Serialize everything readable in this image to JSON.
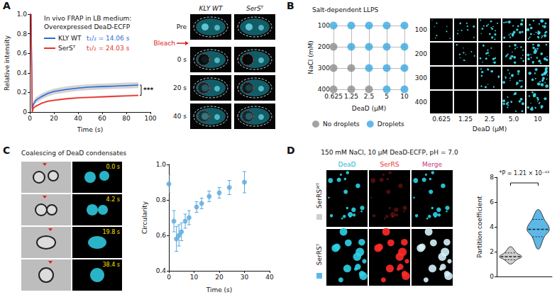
{
  "chart_data": [
    {
      "panel": "A",
      "type": "line",
      "title": "In vivo FRAP in LB medium:",
      "subtitle": "Overexpressed DeaD-ECFP",
      "x": [
        0,
        1,
        2,
        3,
        5,
        10,
        15,
        20,
        30,
        40,
        50,
        60,
        70,
        80,
        90
      ],
      "series": [
        {
          "name": "KLY WT",
          "color": "#2b6ad8",
          "values": [
            1,
            1,
            0.03,
            0.08,
            0.12,
            0.16,
            0.19,
            0.21,
            0.23,
            0.245,
            0.255,
            0.26,
            0.265,
            0.27,
            0.275
          ],
          "errors": [
            0,
            0,
            0.02,
            0.03,
            0.03,
            0.03,
            0.03,
            0.03,
            0.03,
            0.03,
            0.03,
            0.03,
            0.03,
            0.03,
            0.03
          ],
          "annotation": "t₁/₂ = 14.06 s"
        },
        {
          "name": "SerSᵀ",
          "color": "#e8322a",
          "values": [
            1,
            1,
            0,
            0.04,
            0.06,
            0.09,
            0.11,
            0.12,
            0.135,
            0.145,
            0.15,
            0.155,
            0.16,
            0.165,
            0.17
          ],
          "errors": [
            0,
            0,
            0.01,
            0.01,
            0.01,
            0.01,
            0.01,
            0.01,
            0.01,
            0.01,
            0.01,
            0.01,
            0.01,
            0.01,
            0.01
          ],
          "annotation": "t₁/₂ = 24.03 s"
        }
      ],
      "xlabel": "Time (s)",
      "ylabel": "Relative intensity",
      "xlim": [
        0,
        100
      ],
      "xticks": [
        0,
        20,
        40,
        60,
        80,
        100
      ],
      "ylim": [
        0,
        1
      ],
      "yticks": [
        0,
        0.2,
        0.4,
        0.6,
        0.8,
        {
          "value": 1,
          "label": "1.0"
        }
      ],
      "significance": "***"
    },
    {
      "panel": "B",
      "type": "dot",
      "title": "Salt-dependent LLPS",
      "xlabel": "DeaD (μM)",
      "ylabel": "NaCl (mM)",
      "categories": [
        "0.625",
        "1.25",
        "2.5",
        "5",
        "10"
      ],
      "y_categories": [
        "100",
        "200",
        "300",
        "400"
      ],
      "series": [
        {
          "name": "No droplets",
          "color": "#8c8c8c",
          "points": [
            [
              "0.625",
              "200"
            ],
            [
              "0.625",
              "300"
            ],
            [
              "1.25",
              "300"
            ],
            [
              "0.625",
              "400"
            ],
            [
              "1.25",
              "400"
            ],
            [
              "2.5",
              "400"
            ]
          ]
        },
        {
          "name": "Droplets",
          "color": "#3aa7e0",
          "points": [
            [
              "0.625",
              "100"
            ],
            [
              "1.25",
              "100"
            ],
            [
              "2.5",
              "100"
            ],
            [
              "5",
              "100"
            ],
            [
              "10",
              "100"
            ],
            [
              "1.25",
              "200"
            ],
            [
              "2.5",
              "200"
            ],
            [
              "5",
              "200"
            ],
            [
              "10",
              "200"
            ],
            [
              "2.5",
              "300"
            ],
            [
              "5",
              "300"
            ],
            [
              "10",
              "300"
            ],
            [
              "5",
              "400"
            ],
            [
              "10",
              "400"
            ]
          ]
        }
      ],
      "grid": true,
      "legend": "bottom"
    },
    {
      "panel": "C",
      "type": "scatter",
      "x": [
        0,
        2,
        3,
        4,
        5,
        6.5,
        8,
        11,
        13,
        16,
        20,
        24,
        30
      ],
      "values": [
        0.89,
        0.68,
        0.58,
        0.6,
        0.62,
        0.68,
        0.7,
        0.76,
        0.78,
        0.82,
        0.84,
        0.87,
        0.9
      ],
      "errors": [
        0.05,
        0.06,
        0.07,
        0.06,
        0.05,
        0.04,
        0.04,
        0.03,
        0.03,
        0.03,
        0.03,
        0.04,
        0.06
      ],
      "color": "#5aa9dc",
      "xlabel": "Time (s)",
      "ylabel": "Circularity",
      "xlim": [
        0,
        40
      ],
      "xticks": [
        0,
        10,
        20,
        30,
        40
      ],
      "ylim": [
        0.4,
        1
      ],
      "yticks": [
        0.4,
        0.6,
        0.8,
        {
          "value": 1,
          "label": "1.0"
        }
      ]
    },
    {
      "panel": "D",
      "type": "violin",
      "categories": [
        null,
        null
      ],
      "distributions": [
        {
          "min": 1.0,
          "q1": 1.35,
          "median": 1.6,
          "q3": 1.9,
          "max": 2.4
        },
        {
          "min": 2.2,
          "q1": 3.2,
          "median": 3.8,
          "q3": 4.6,
          "max": 5.4
        }
      ],
      "colors": [
        "#cfcfcf",
        "#5cb8e8"
      ],
      "ylabel": "Partition coefficient",
      "ylim": [
        0,
        8
      ],
      "yticks": [
        0,
        2,
        4,
        6,
        8
      ],
      "annotation": "*P = 1.21 × 10⁻¹²"
    }
  ],
  "images": {
    "A": {
      "columns": [
        "KLY WT",
        "SerSᵀ"
      ],
      "rows": [
        "Pre",
        "0 s",
        "20 s",
        "40 s"
      ],
      "bleach": "Bleach"
    },
    "B": {
      "columns": [
        "0.625",
        "1.25",
        "2.5",
        "5.0",
        "10"
      ],
      "rows": [
        "100",
        "200",
        "300",
        "400"
      ],
      "xlabel": "DeaD (μM)"
    },
    "C": {
      "title": "Coalescing of DeaD condensates",
      "times": [
        "0.0 s",
        "4.2 s",
        "19.8 s",
        "38.4 s"
      ]
    },
    "D": {
      "title": "150 mM NaCl, 10 μM DeaD-ECFP, pH = 7.0",
      "columns": [
        "DeaD",
        "SerRS",
        "Merge"
      ],
      "rows": [
        "SerRSᵂᵀ",
        "SerRSᵀ"
      ]
    }
  }
}
